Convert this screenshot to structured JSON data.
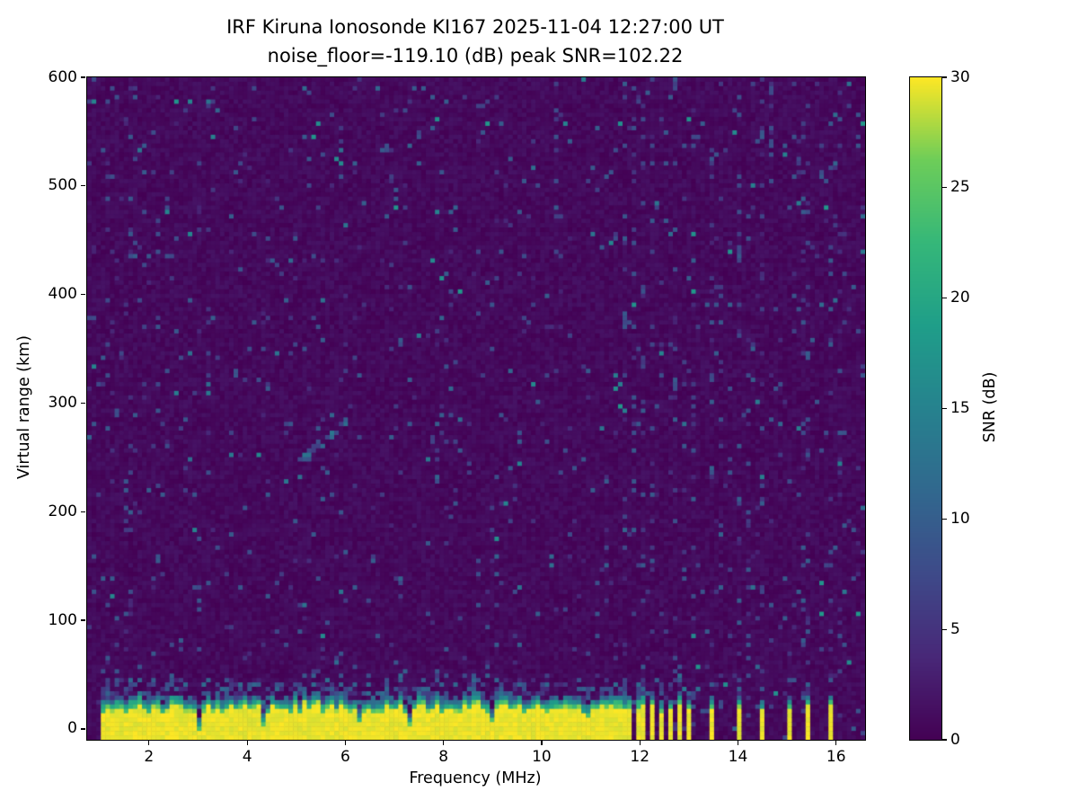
{
  "chart_data": {
    "type": "heatmap",
    "title": "IRF Kiruna Ionosonde KI167 2025-11-04 12:27:00  UT",
    "subtitle": "noise_floor=-119.10 (dB) peak SNR=102.22",
    "station": "IRF Kiruna Ionosonde KI167",
    "timestamp_ut": "2025-11-04 12:27:00 UT",
    "noise_floor_db": -119.1,
    "peak_snr_db": 102.22,
    "xlabel": "Frequency (MHz)",
    "ylabel": "Virtual range (km)",
    "xlim": [
      0.74,
      16.59
    ],
    "ylim": [
      -10,
      600
    ],
    "x_ticks": [
      2,
      4,
      6,
      8,
      10,
      12,
      14,
      16
    ],
    "y_ticks": [
      0,
      100,
      200,
      300,
      400,
      500,
      600
    ],
    "colorbar": {
      "label": "SNR (dB)",
      "ticks": [
        0,
        5,
        10,
        15,
        20,
        25,
        30
      ],
      "range": [
        0,
        30
      ],
      "colormap": "viridis"
    },
    "colormap_stops": [
      [
        0.0,
        [
          68,
          1,
          84
        ]
      ],
      [
        0.125,
        [
          72,
          40,
          120
        ]
      ],
      [
        0.25,
        [
          62,
          74,
          137
        ]
      ],
      [
        0.375,
        [
          49,
          104,
          142
        ]
      ],
      [
        0.5,
        [
          38,
          130,
          142
        ]
      ],
      [
        0.625,
        [
          31,
          158,
          137
        ]
      ],
      [
        0.75,
        [
          53,
          183,
          121
        ]
      ],
      [
        0.875,
        [
          109,
          205,
          89
        ]
      ],
      [
        1.0,
        [
          253,
          231,
          37
        ]
      ]
    ],
    "grid": {
      "nx": 170,
      "ny": 150
    },
    "background_snr_db": 1,
    "ground_band": {
      "freq_start": 1.03,
      "freq_end": 11.62,
      "top_km_mean": 30,
      "notches": [
        [
          2.35,
          8
        ],
        [
          3.05,
          16
        ],
        [
          4.35,
          16
        ],
        [
          6.3,
          18
        ],
        [
          7.3,
          14
        ],
        [
          8.95,
          12
        ],
        [
          10.9,
          10
        ]
      ]
    },
    "band_stripes": [
      {
        "f": 11.66,
        "w": 0.09
      },
      {
        "f": 11.8,
        "w": 0.08
      },
      {
        "f": 11.95,
        "w": 0.08
      },
      {
        "f": 12.1,
        "w": 0.08
      },
      {
        "f": 12.26,
        "w": 0.08
      },
      {
        "f": 12.43,
        "w": 0.09
      },
      {
        "f": 12.61,
        "w": 0.08
      },
      {
        "f": 12.79,
        "w": 0.09
      },
      {
        "f": 12.97,
        "w": 0.08
      },
      {
        "f": 13.45,
        "w": 0.07
      },
      {
        "f": 14.04,
        "w": 0.1
      },
      {
        "f": 14.52,
        "w": 0.09
      },
      {
        "f": 15.04,
        "w": 0.1
      },
      {
        "f": 15.46,
        "w": 0.09
      },
      {
        "f": 15.9,
        "w": 0.08
      },
      {
        "f": 16.13,
        "w": 0.08
      }
    ],
    "noisy_columns": [
      11.7,
      11.88,
      12.05,
      12.22,
      12.4,
      12.58,
      12.76,
      12.94,
      13.1,
      13.45,
      14.04,
      14.2,
      14.52,
      14.66,
      15.3,
      15.46,
      15.9,
      16.1
    ],
    "echo_trace": {
      "f_start": 5.0,
      "f_end": 6.05,
      "r_start": 246,
      "r_end": 285,
      "snr_db": 10
    }
  },
  "colors": {
    "background": "#ffffff",
    "cmap_low": "#440154",
    "cmap_high": "#fde725",
    "spine": "#000000"
  }
}
